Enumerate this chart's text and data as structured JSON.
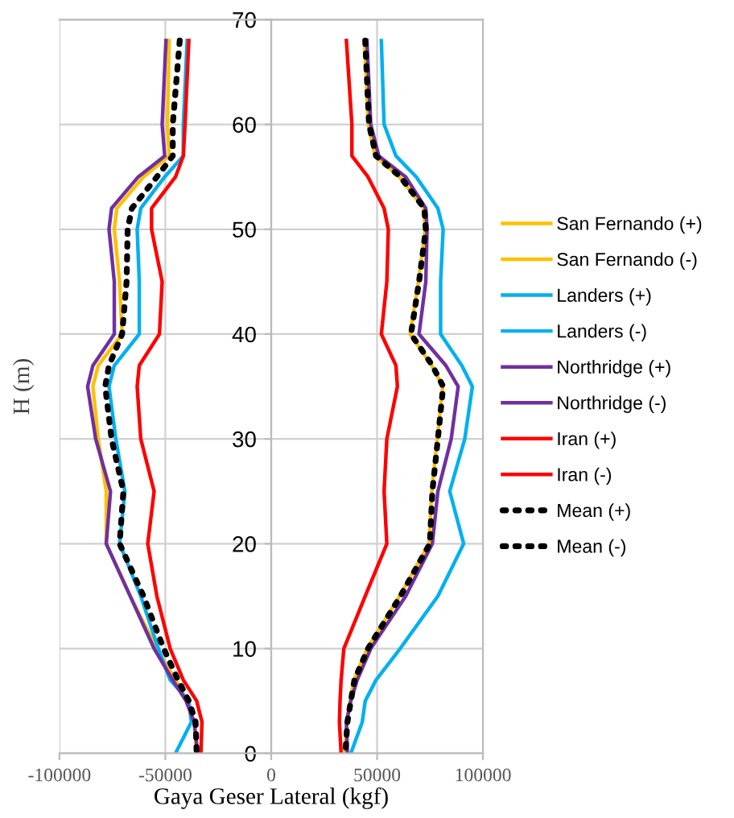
{
  "chart_data": {
    "type": "line",
    "xlabel": "Gaya Geser Lateral (kgf)",
    "ylabel": "H (m)",
    "xlim": [
      -100000,
      100000
    ],
    "xticks": [
      -100000,
      -50000,
      0,
      50000,
      100000
    ],
    "ylim": [
      0,
      70
    ],
    "yticks": [
      0,
      10,
      20,
      30,
      40,
      50,
      60,
      70
    ],
    "grid": true,
    "legend": "right",
    "marker": "none",
    "series": [
      {
        "name": "San Fernando (+)",
        "color": "#ffc000",
        "line_style": "solid",
        "x": [
          44000,
          45800,
          49000,
          60500,
          72000,
          72700,
          69500,
          65600,
          75800,
          81000,
          78400,
          75800,
          74500,
          60600,
          45300,
          39000,
          37300,
          35800,
          34800
        ],
        "values": [
          68,
          60,
          57,
          55,
          52,
          50,
          45,
          40,
          37,
          35,
          30,
          25,
          20,
          15,
          10,
          7,
          5,
          3,
          0
        ]
      },
      {
        "name": "San Fernando (-)",
        "color": "#ffc000",
        "line_style": "solid",
        "x": [
          -48200,
          -49000,
          -48200,
          -60300,
          -72900,
          -74100,
          -71600,
          -70400,
          -81700,
          -84200,
          -81700,
          -77900,
          -77900,
          -66600,
          -54000,
          -45200,
          -39700,
          -36400,
          -35200
        ],
        "values": [
          68,
          60,
          57,
          55,
          52,
          50,
          45,
          40,
          37,
          35,
          30,
          25,
          20,
          15,
          10,
          7,
          5,
          3,
          0
        ]
      },
      {
        "name": "Landers (+)",
        "color": "#00b0f0",
        "line_style": "solid",
        "x": [
          52000,
          53300,
          58900,
          68500,
          78700,
          81200,
          80000,
          80000,
          90000,
          95000,
          91400,
          84300,
          90900,
          78700,
          60900,
          49500,
          44400,
          43000,
          37600
        ],
        "values": [
          68,
          60,
          57,
          55,
          52,
          50,
          45,
          40,
          37,
          35,
          30,
          25,
          20,
          15,
          10,
          7,
          5,
          3,
          0
        ]
      },
      {
        "name": "Landers (-)",
        "color": "#00b0f0",
        "line_style": "solid",
        "x": [
          -39700,
          -41500,
          -41500,
          -50300,
          -61600,
          -63300,
          -62300,
          -62300,
          -74100,
          -76600,
          -73400,
          -69100,
          -71600,
          -61600,
          -53300,
          -47700,
          -38900,
          -37700,
          -45200
        ],
        "values": [
          68,
          60,
          57,
          55,
          52,
          50,
          45,
          40,
          37,
          35,
          30,
          25,
          20,
          15,
          10,
          7,
          5,
          3,
          0
        ]
      },
      {
        "name": "Northridge (+)",
        "color": "#7030a0",
        "line_style": "solid",
        "x": [
          45200,
          47000,
          50800,
          63500,
          73000,
          73600,
          73000,
          69800,
          82500,
          88300,
          85000,
          78700,
          76100,
          63500,
          47000,
          40600,
          37600,
          35500,
          36000
        ],
        "values": [
          68,
          60,
          57,
          55,
          52,
          50,
          45,
          40,
          37,
          35,
          30,
          25,
          20,
          15,
          10,
          7,
          5,
          3,
          0
        ]
      },
      {
        "name": "Northridge (-)",
        "color": "#7030a0",
        "line_style": "solid",
        "x": [
          -49700,
          -51500,
          -50300,
          -62800,
          -75400,
          -76600,
          -74100,
          -74100,
          -84200,
          -86700,
          -82900,
          -75900,
          -77900,
          -66600,
          -55300,
          -46500,
          -40200,
          -36400,
          -34700
        ],
        "values": [
          68,
          60,
          57,
          55,
          52,
          50,
          45,
          40,
          37,
          35,
          30,
          25,
          20,
          15,
          10,
          7,
          5,
          3,
          0
        ]
      },
      {
        "name": "Iran (+)",
        "color": "#ff0000",
        "line_style": "solid",
        "x": [
          35500,
          38100,
          38100,
          45700,
          53300,
          55300,
          54600,
          52000,
          58900,
          59600,
          54600,
          53300,
          54600,
          44400,
          34300,
          33000,
          32500,
          32200,
          33000
        ],
        "values": [
          68,
          60,
          57,
          55,
          52,
          50,
          45,
          40,
          37,
          35,
          30,
          25,
          20,
          15,
          10,
          7,
          5,
          3,
          0
        ]
      },
      {
        "name": "Iran (-)",
        "color": "#ff0000",
        "line_style": "solid",
        "x": [
          -38900,
          -40700,
          -41500,
          -45200,
          -56500,
          -56500,
          -51500,
          -52800,
          -62300,
          -63300,
          -61600,
          -55300,
          -58300,
          -54000,
          -47700,
          -41500,
          -35200,
          -32700,
          -33200
        ],
        "values": [
          68,
          60,
          57,
          55,
          52,
          50,
          45,
          40,
          37,
          35,
          30,
          25,
          20,
          15,
          10,
          7,
          5,
          3,
          0
        ]
      },
      {
        "name": "Mean (+)",
        "color": "#000000",
        "line_style": "dotted",
        "x": [
          44400,
          46200,
          49500,
          61000,
          72300,
          73000,
          69800,
          66000,
          76100,
          81200,
          78700,
          76100,
          74900,
          61000,
          45700,
          39300,
          37600,
          36000,
          35000
        ],
        "values": [
          68,
          60,
          57,
          55,
          52,
          50,
          45,
          40,
          37,
          35,
          30,
          25,
          20,
          15,
          10,
          7,
          5,
          3,
          0
        ]
      },
      {
        "name": "Mean (-)",
        "color": "#000000",
        "line_style": "dotted",
        "x": [
          -43200,
          -46500,
          -46500,
          -54000,
          -65800,
          -67800,
          -68300,
          -70400,
          -76600,
          -78400,
          -75400,
          -69800,
          -71600,
          -60300,
          -50800,
          -44000,
          -38900,
          -35700,
          -35200
        ],
        "values": [
          68,
          60,
          57,
          55,
          52,
          50,
          45,
          40,
          37,
          35,
          30,
          25,
          20,
          15,
          10,
          7,
          5,
          3,
          0
        ]
      }
    ]
  }
}
